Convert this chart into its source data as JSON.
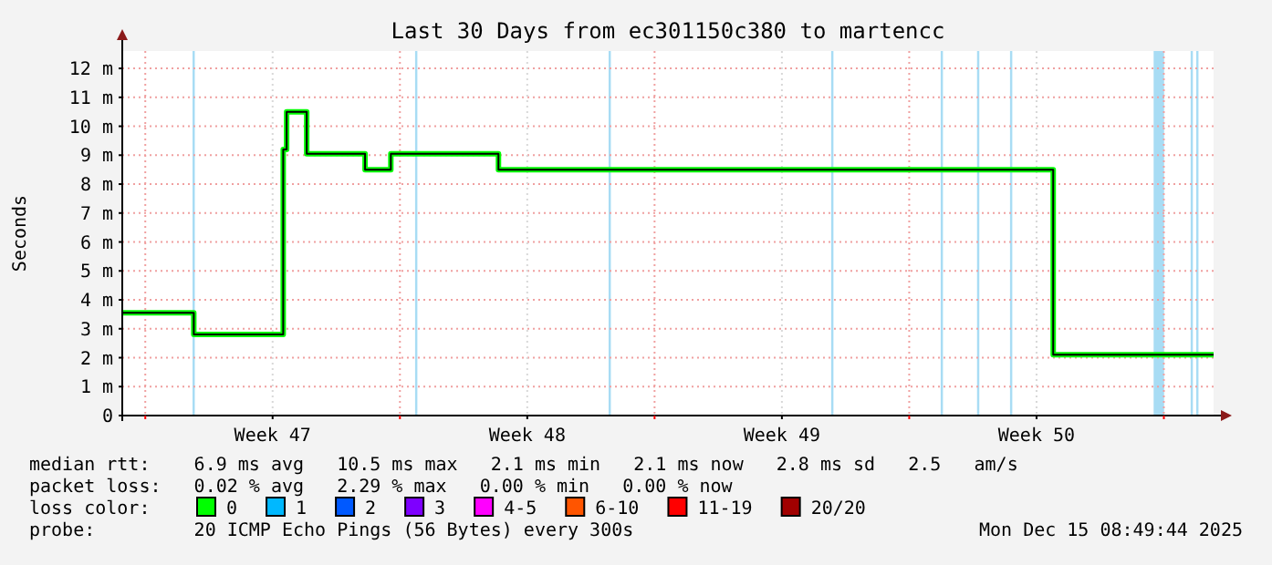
{
  "chart_data": {
    "type": "step",
    "title": "Last 30 Days from ec301150c380 to martencc",
    "ylabel": "Seconds",
    "x": [
      "2025-11-15T08:49",
      "2025-11-17T08:00",
      "2025-11-19T19:00",
      "2025-11-19T21:15",
      "2025-11-20T10:30",
      "2025-11-22T01:00",
      "2025-11-22T18:00",
      "2025-11-25T17:00",
      "2025-12-10T23:00",
      "2025-12-15T08:49"
    ],
    "xlim": [
      "2025-11-15T08:49",
      "2025-12-15T08:49"
    ],
    "xticks": [
      {
        "value": "2025-11-16T00:00",
        "label": null
      },
      {
        "value": "2025-11-19T12:00",
        "label": "Week 47"
      },
      {
        "value": "2025-11-23T00:00",
        "label": null
      },
      {
        "value": "2025-11-26T12:00",
        "label": "Week 48"
      },
      {
        "value": "2025-11-30T00:00",
        "label": null
      },
      {
        "value": "2025-12-03T12:00",
        "label": "Week 49"
      },
      {
        "value": "2025-12-07T00:00",
        "label": null
      },
      {
        "value": "2025-12-10T12:00",
        "label": "Week 50"
      },
      {
        "value": "2025-12-14T00:00",
        "label": null
      }
    ],
    "ylim": [
      0,
      12.6
    ],
    "yticks": [
      0,
      {
        "value": 1,
        "label": "1 m"
      },
      {
        "value": 2,
        "label": "2 m"
      },
      {
        "value": 3,
        "label": "3 m"
      },
      {
        "value": 4,
        "label": "4 m"
      },
      {
        "value": 5,
        "label": "5 m"
      },
      {
        "value": 6,
        "label": "6 m"
      },
      {
        "value": 7,
        "label": "7 m"
      },
      {
        "value": 8,
        "label": "8 m"
      },
      {
        "value": 9,
        "label": "9 m"
      },
      {
        "value": 10,
        "label": "10 m"
      },
      {
        "value": 11,
        "label": "11 m"
      },
      {
        "value": 12,
        "label": "12 m"
      }
    ],
    "grid": true,
    "legend": "bottom",
    "legend_title": "loss color:",
    "series": [
      {
        "name": "0",
        "color": "#00ff00",
        "values": [
          3.55,
          2.8,
          9.2,
          10.5,
          9.05,
          8.5,
          9.05,
          8.5,
          2.1,
          2.1
        ]
      },
      {
        "name": "1",
        "color": "#00b8ff",
        "values": [
          null,
          null,
          null,
          null,
          null,
          null,
          null,
          null,
          null,
          null
        ]
      },
      {
        "name": "2",
        "color": "#0059ff",
        "values": [
          null,
          null,
          null,
          null,
          null,
          null,
          null,
          null,
          null,
          null
        ]
      },
      {
        "name": "3",
        "color": "#7e00ff",
        "values": [
          null,
          null,
          null,
          null,
          null,
          null,
          null,
          null,
          null,
          null
        ]
      },
      {
        "name": "4-5",
        "color": "#ff00ff",
        "values": [
          null,
          null,
          null,
          null,
          null,
          null,
          null,
          null,
          null,
          null
        ]
      },
      {
        "name": "6-10",
        "color": "#ff5500",
        "values": [
          null,
          null,
          null,
          null,
          null,
          null,
          null,
          null,
          null,
          null
        ]
      },
      {
        "name": "11-19",
        "color": "#ff0000",
        "values": [
          null,
          null,
          null,
          null,
          null,
          null,
          null,
          null,
          null,
          null
        ]
      },
      {
        "name": "20/20",
        "color": "#a10000",
        "values": [
          null,
          null,
          null,
          null,
          null,
          null,
          null,
          null,
          null,
          null
        ]
      }
    ],
    "bands": [
      {
        "axis": "x",
        "from": "2025-11-17T07:10",
        "to": "2025-11-17T08:40",
        "color": "#a8dcf4"
      },
      {
        "axis": "x",
        "from": "2025-11-23T10:00",
        "to": "2025-11-23T11:30",
        "color": "#a8dcf4"
      },
      {
        "axis": "x",
        "from": "2025-11-28T17:40",
        "to": "2025-11-28T19:10",
        "color": "#a8dcf4"
      },
      {
        "axis": "x",
        "from": "2025-12-04T20:30",
        "to": "2025-12-04T22:00",
        "color": "#a8dcf4"
      },
      {
        "axis": "x",
        "from": "2025-12-07T20:45",
        "to": "2025-12-07T22:15",
        "color": "#a8dcf4"
      },
      {
        "axis": "x",
        "from": "2025-12-08T20:45",
        "to": "2025-12-08T22:15",
        "color": "#a8dcf4"
      },
      {
        "axis": "x",
        "from": "2025-12-09T18:30",
        "to": "2025-12-09T20:00",
        "color": "#a8dcf4"
      },
      {
        "axis": "x",
        "from": "2025-12-13T17:15",
        "to": "2025-12-14T00:10",
        "color": "#a8dcf4"
      },
      {
        "axis": "x",
        "from": "2025-12-14T17:40",
        "to": "2025-12-14T19:10",
        "color": "#a8dcf4"
      },
      {
        "axis": "x",
        "from": "2025-12-14T21:20",
        "to": "2025-12-14T22:50",
        "color": "#a8dcf4"
      }
    ],
    "annotations": [
      "median rtt:    6.9 ms avg   10.5 ms max   2.1 ms min   2.1 ms now   2.8 ms sd   2.5   am/s",
      "packet loss:   0.02 % avg   2.29 % max   0.00 % min   0.00 % now",
      "probe:         20 ICMP Echo Pings (56 Bytes) every 300s",
      "Mon Dec 15 08:49:44 2025"
    ]
  }
}
